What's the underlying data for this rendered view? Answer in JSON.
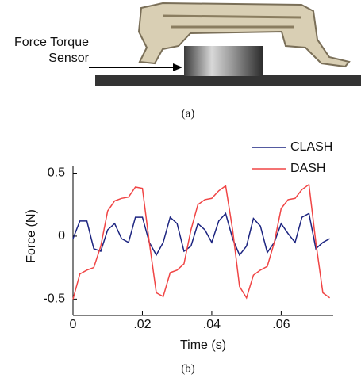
{
  "photo": {
    "label": "Force Torque Sensor",
    "caption": "(a)"
  },
  "chart_data": {
    "type": "line",
    "caption": "(b)",
    "x_label": "Time (s)",
    "y_label": "Force (N)",
    "x": [
      0,
      0.002,
      0.004,
      0.006,
      0.008,
      0.01,
      0.012,
      0.014,
      0.016,
      0.018,
      0.02,
      0.022,
      0.024,
      0.026,
      0.028,
      0.03,
      0.032,
      0.034,
      0.036,
      0.038,
      0.04,
      0.042,
      0.044,
      0.046,
      0.048,
      0.05,
      0.052,
      0.054,
      0.056,
      0.058,
      0.06,
      0.062,
      0.064,
      0.066,
      0.068,
      0.07,
      0.072,
      0.074
    ],
    "series": [
      {
        "name": "CLASH",
        "color": "#1c2480",
        "values": [
          -0.02,
          0.12,
          0.12,
          -0.1,
          -0.12,
          0.05,
          0.1,
          -0.02,
          -0.05,
          0.15,
          0.15,
          -0.05,
          -0.15,
          -0.05,
          0.15,
          0.1,
          -0.12,
          -0.08,
          0.1,
          0.05,
          -0.05,
          0.12,
          0.18,
          -0.02,
          -0.15,
          -0.08,
          0.14,
          0.08,
          -0.13,
          -0.05,
          0.1,
          0.02,
          -0.05,
          0.15,
          0.18,
          -0.1,
          -0.05,
          -0.02
        ]
      },
      {
        "name": "DASH",
        "color": "#f04545",
        "values": [
          -0.5,
          -0.3,
          -0.27,
          -0.25,
          -0.08,
          0.2,
          0.28,
          0.3,
          0.31,
          0.39,
          0.38,
          -0.05,
          -0.45,
          -0.48,
          -0.29,
          -0.27,
          -0.22,
          0.05,
          0.25,
          0.29,
          0.3,
          0.36,
          0.4,
          0.05,
          -0.4,
          -0.49,
          -0.31,
          -0.27,
          -0.24,
          -0.05,
          0.22,
          0.29,
          0.3,
          0.37,
          0.41,
          -0.05,
          -0.45,
          -0.49
        ]
      }
    ],
    "xlim": [
      0,
      0.075
    ],
    "xticks": [
      0,
      {
        "value": 0.02,
        "label": ".02"
      },
      {
        "value": 0.04,
        "label": ".04"
      },
      {
        "value": 0.06,
        "label": ".06"
      }
    ],
    "ylim": [
      -0.63,
      0.56
    ],
    "yticks": [
      -0.5,
      0,
      0.5
    ],
    "grid": false,
    "legend": "upper right"
  }
}
